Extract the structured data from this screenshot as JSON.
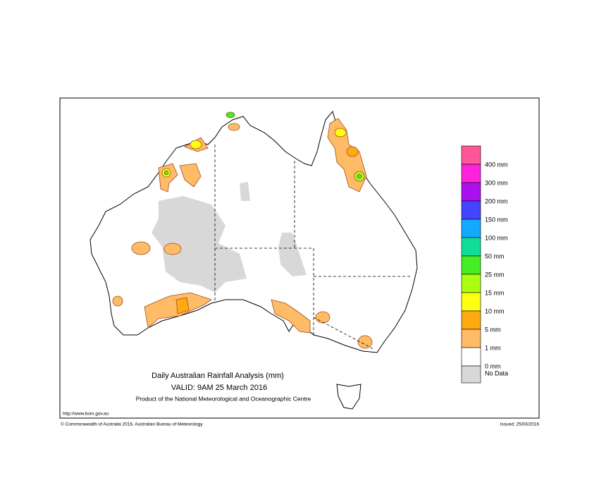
{
  "title": {
    "line1": "Daily Australian Rainfall Analysis (mm)",
    "line2": "VALID: 9AM 25 March 2016",
    "line3": "Product of the National Meteorological and Oceanographic Centre"
  },
  "footer": {
    "url": "http://www.bom.gov.au",
    "copyright": "© Commonwealth of Australia 2016, Australian Bureau of Meteorology",
    "issued": "Issued: 25/03/2016"
  },
  "legend": {
    "colors": [
      "#ff5599",
      "#ff22dd",
      "#aa11ee",
      "#4444ff",
      "#11aaff",
      "#11dd99",
      "#44ee22",
      "#aaff11",
      "#ffff11",
      "#ffaa11",
      "#ffbb66",
      "#ffffff",
      "#d8d8d8"
    ],
    "labels": [
      "400 mm",
      "300 mm",
      "200 mm",
      "150 mm",
      "100 mm",
      "50 mm",
      "25 mm",
      "15 mm",
      "10 mm",
      "5 mm",
      "1 mm",
      "0 mm",
      "No Data"
    ]
  }
}
